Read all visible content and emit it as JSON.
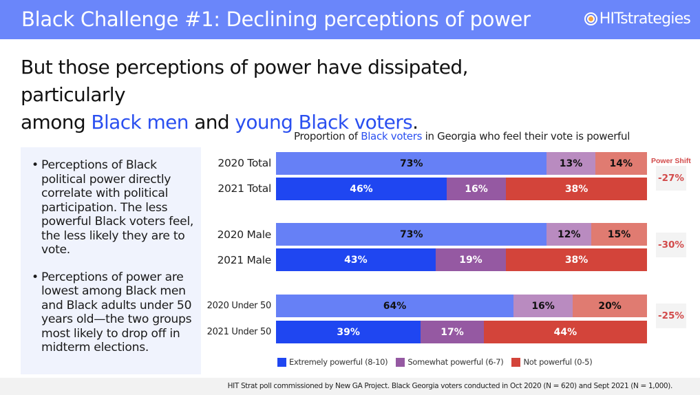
{
  "header": {
    "title": "Black Challenge #1: Declining perceptions of power",
    "logo_text": "HITstrategies",
    "logo_icon": "target-icon"
  },
  "subtitle": {
    "line1": "But those perceptions of power have dissipated, particularly",
    "line2_prefix": "among ",
    "highlight1": "Black men",
    "middle": " and ",
    "highlight2": "young Black voters",
    "suffix": "."
  },
  "bullets": [
    "Perceptions of Black political power directly correlate with political participation. The less powerful Black voters feel, the less likely they are to vote.",
    "Perceptions of power are lowest among Black men and Black adults under 50 years old—the two groups most likely to drop off in midterm elections."
  ],
  "footer": {
    "source": "HIT Strat poll commissioned by New GA Project. Black Georgia voters conducted in Oct 2020 (N = 620) and Sept 2021 (N = 1,000)."
  },
  "colors": {
    "header_bg": "#6a86fa",
    "highlight": "#2a4ff0",
    "shift_red": "#d24a4a"
  },
  "chart_data": {
    "type": "bar",
    "orientation": "horizontal-stacked-100",
    "title_prefix": "Proportion of ",
    "title_highlight": "Black voters",
    "title_suffix": " in Georgia who feel their vote is powerful",
    "categories": [
      "2020 Total",
      "2021 Total",
      "2020 Male",
      "2021 Male",
      "2020 Under 50",
      "2021 Under 50"
    ],
    "series": [
      {
        "name": "Extremely powerful (8-10)",
        "values": [
          73,
          46,
          73,
          43,
          64,
          39
        ]
      },
      {
        "name": "Somewhat powerful (6-7)",
        "values": [
          13,
          16,
          12,
          19,
          16,
          17
        ]
      },
      {
        "name": "Not powerful (0-5)",
        "values": [
          14,
          38,
          15,
          38,
          20,
          44
        ]
      }
    ],
    "colors_2020": [
      "#6680f6",
      "#b98bc0",
      "#e07b71"
    ],
    "colors_2021": [
      "#1f46f1",
      "#9559a2",
      "#d3443a"
    ],
    "label_colors_2020": "#111111",
    "label_colors_2021": "#ffffff",
    "power_shift": {
      "heading": "Power Shift",
      "values": [
        "-27%",
        "-30%",
        "-25%"
      ]
    },
    "legend": {
      "position": "bottom",
      "items": [
        {
          "label": "Extremely powerful (8-10)",
          "color": "#1f46f1"
        },
        {
          "label": "Somewhat powerful (6-7)",
          "color": "#9559a2"
        },
        {
          "label": "Not powerful (0-5)",
          "color": "#d3443a"
        }
      ]
    },
    "xlim": [
      0,
      100
    ]
  }
}
